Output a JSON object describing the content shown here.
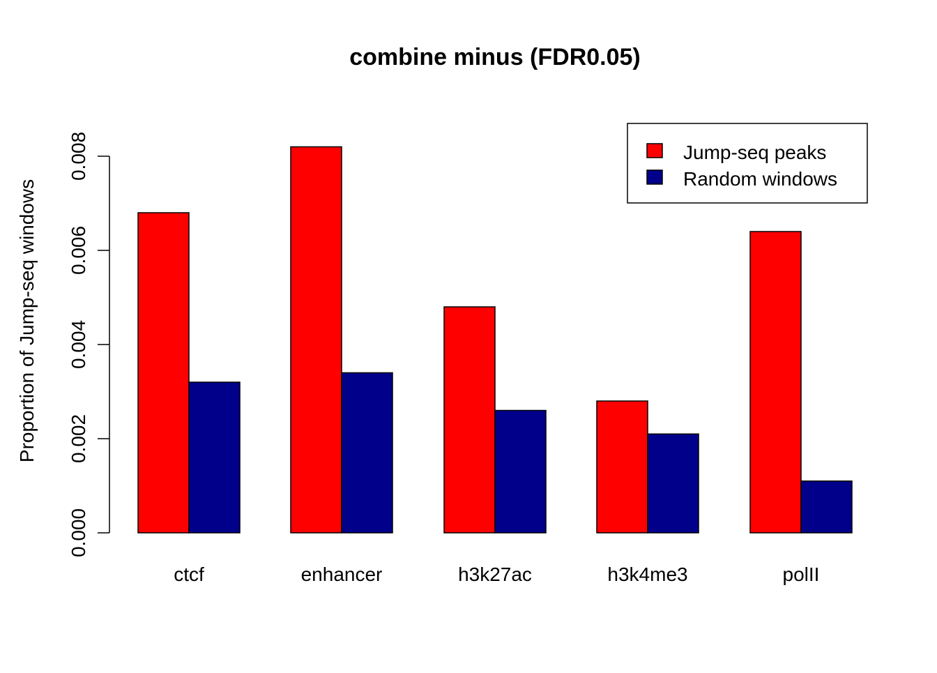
{
  "chart_data": {
    "type": "bar",
    "title": "combine minus (FDR0.05)",
    "xlabel": "",
    "ylabel": "Proportion of Jump-seq windows",
    "categories": [
      "ctcf",
      "enhancer",
      "h3k27ac",
      "h3k4me3",
      "polII"
    ],
    "series": [
      {
        "name": "Jump-seq peaks",
        "color": "#ff0000",
        "values": [
          0.0068,
          0.0082,
          0.0048,
          0.0028,
          0.0064
        ]
      },
      {
        "name": "Random windows",
        "color": "#00008b",
        "values": [
          0.0032,
          0.0034,
          0.0026,
          0.0021,
          0.0011
        ]
      }
    ],
    "ylim": [
      0,
      0.008
    ],
    "yticks": [
      "0.000",
      "0.002",
      "0.004",
      "0.006",
      "0.008"
    ],
    "grid": false,
    "legend_position": "top-right",
    "bar_mode": "grouped"
  }
}
